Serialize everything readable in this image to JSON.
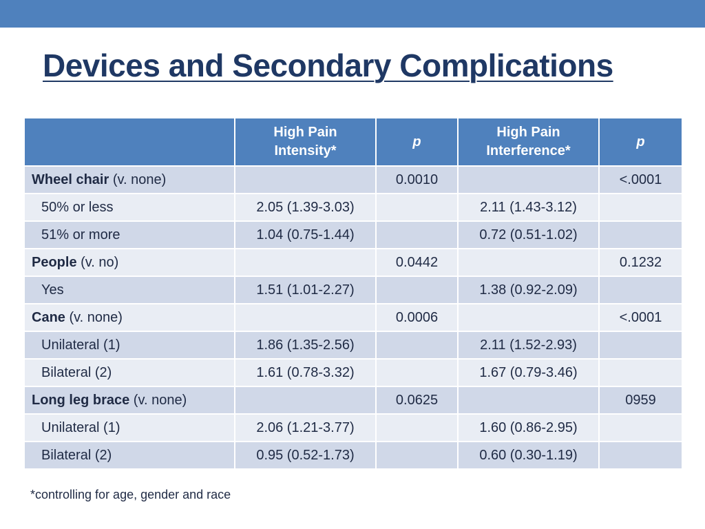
{
  "slide": {
    "title": "Devices and Secondary Complications",
    "footnote": "*controlling for age, gender and race",
    "colors": {
      "accent_bar": "#4f81bd",
      "title": "#1f3864",
      "header_fill": "#4f81bd",
      "row_fill_dark": "#d0d8e8",
      "row_fill_light": "#e9edf4"
    }
  },
  "table": {
    "headers": [
      "",
      "High Pain Intensity*",
      "p",
      "High Pain Interference*",
      "p"
    ],
    "rows": [
      {
        "bold": "Wheel chair",
        "rest": " (v. none)",
        "sub": false,
        "c1": "",
        "c2": "0.0010",
        "c3": "",
        "c4": "<.0001"
      },
      {
        "bold": "",
        "rest": "50% or less",
        "sub": true,
        "c1": "2.05 (1.39-3.03)",
        "c2": "",
        "c3": "2.11 (1.43-3.12)",
        "c4": ""
      },
      {
        "bold": "",
        "rest": "51% or more",
        "sub": true,
        "c1": "1.04 (0.75-1.44)",
        "c2": "",
        "c3": "0.72 (0.51-1.02)",
        "c4": ""
      },
      {
        "bold": "People",
        "rest": " (v. no)",
        "sub": false,
        "c1": "",
        "c2": "0.0442",
        "c3": "",
        "c4": "0.1232"
      },
      {
        "bold": "",
        "rest": "Yes",
        "sub": true,
        "c1": "1.51 (1.01-2.27)",
        "c2": "",
        "c3": "1.38 (0.92-2.09)",
        "c4": ""
      },
      {
        "bold": "Cane",
        "rest": " (v. none)",
        "sub": false,
        "c1": "",
        "c2": "0.0006",
        "c3": "",
        "c4": "<.0001"
      },
      {
        "bold": "",
        "rest": "Unilateral (1)",
        "sub": true,
        "c1": "1.86 (1.35-2.56)",
        "c2": "",
        "c3": "2.11 (1.52-2.93)",
        "c4": ""
      },
      {
        "bold": "",
        "rest": "Bilateral (2)",
        "sub": true,
        "c1": "1.61 (0.78-3.32)",
        "c2": "",
        "c3": "1.67 (0.79-3.46)",
        "c4": ""
      },
      {
        "bold": "Long leg brace",
        "rest": " (v. none)",
        "sub": false,
        "c1": "",
        "c2": "0.0625",
        "c3": "",
        "c4": "0959"
      },
      {
        "bold": "",
        "rest": "Unilateral (1)",
        "sub": true,
        "c1": "2.06 (1.21-3.77)",
        "c2": "",
        "c3": "1.60 (0.86-2.95)",
        "c4": ""
      },
      {
        "bold": "",
        "rest": "Bilateral (2)",
        "sub": true,
        "c1": "0.95 (0.52-1.73)",
        "c2": "",
        "c3": "0.60 (0.30-1.19)",
        "c4": ""
      }
    ]
  }
}
